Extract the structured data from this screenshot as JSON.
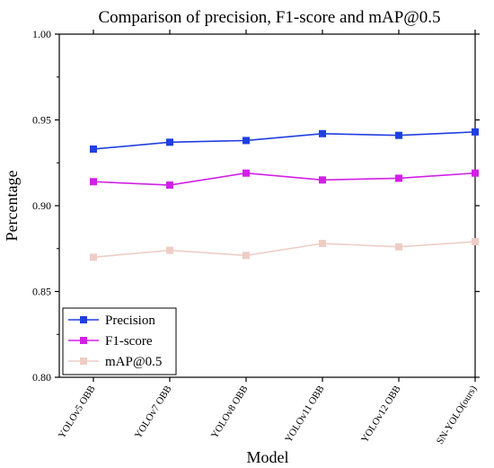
{
  "chart_data": {
    "type": "line",
    "title": "Comparison of precision, F1-score and mAP@0.5",
    "xlabel": "Model",
    "ylabel": "Percentage",
    "categories": [
      "YOLOv5 OBB",
      "YOLOv7 OBB",
      "YOLOv8 OBB",
      "YOLOv11 OBB",
      "YOLOv12 OBB",
      "SN-YOLO(ours)"
    ],
    "ylim": [
      0.8,
      1.0
    ],
    "yticks": [
      "0.80",
      "0.85",
      "0.90",
      "0.95",
      "1.00"
    ],
    "grid": false,
    "legend_position": "bottom-left",
    "series": [
      {
        "name": "Precision",
        "color": "#1f3fe0",
        "marker": "square",
        "values": [
          0.933,
          0.937,
          0.938,
          0.942,
          0.941,
          0.943
        ]
      },
      {
        "name": "F1-score",
        "color": "#d21fe8",
        "marker": "square",
        "values": [
          0.914,
          0.912,
          0.919,
          0.915,
          0.916,
          0.919
        ]
      },
      {
        "name": "mAP@0.5",
        "color": "#eecdc5",
        "marker": "square",
        "values": [
          0.87,
          0.874,
          0.871,
          0.878,
          0.876,
          0.879
        ]
      }
    ]
  }
}
